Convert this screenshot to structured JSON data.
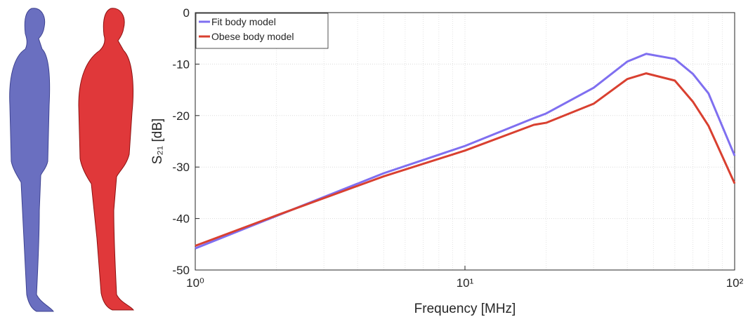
{
  "chart_data": {
    "type": "line",
    "x_label": "Frequency [MHz]",
    "y_label": "S₂₁ [dB]",
    "log_x": true,
    "grid": true,
    "minor_grid": true,
    "legend_position": "upper-left",
    "xlim": [
      1,
      100
    ],
    "ylim": [
      -50,
      0
    ],
    "xticks": [
      {
        "value": 1,
        "label": "10⁰"
      },
      {
        "value": 10,
        "label": "10¹"
      },
      {
        "value": 100,
        "label": "10²"
      }
    ],
    "yticks": [
      -50,
      -40,
      -30,
      -20,
      -10,
      0
    ],
    "x": [
      1,
      2,
      5,
      10,
      18,
      20,
      30,
      40,
      47,
      60,
      70,
      80,
      100
    ],
    "series": [
      {
        "name": "Fit body model",
        "color": "#7f6ff0",
        "values": [
          -45.8,
          -39.5,
          -31.2,
          -25.9,
          -20.5,
          -19.6,
          -14.6,
          -9.5,
          -8.0,
          -9.0,
          -11.9,
          -15.7,
          -27.8
        ]
      },
      {
        "name": "Obese body model",
        "color": "#d94030",
        "values": [
          -45.3,
          -39.4,
          -31.8,
          -26.8,
          -21.8,
          -21.4,
          -17.7,
          -12.9,
          -11.8,
          -13.2,
          -17.3,
          -22.0,
          -33.2
        ]
      }
    ]
  }
}
